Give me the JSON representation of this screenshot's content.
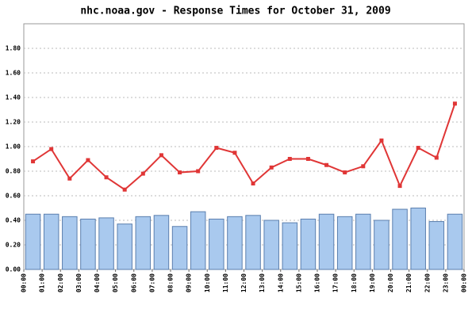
{
  "chart_data": {
    "type": "bar",
    "title": "nhc.noaa.gov - Response Times for October 31, 2009",
    "xticks": [
      "00:00",
      "01:00",
      "02:00",
      "03:00",
      "04:00",
      "05:00",
      "06:00",
      "07:00",
      "08:00",
      "09:00",
      "10:00",
      "11:00",
      "12:00",
      "13:00",
      "14:00",
      "15:00",
      "16:00",
      "17:00",
      "18:00",
      "19:00",
      "20:00",
      "21:00",
      "22:00",
      "23:00",
      "00:00"
    ],
    "series": [
      {
        "type": "bar",
        "color": "#a9c9ee",
        "values": [
          0.45,
          0.45,
          0.43,
          0.41,
          0.42,
          0.37,
          0.43,
          0.44,
          0.35,
          0.47,
          0.41,
          0.43,
          0.44,
          0.4,
          0.38,
          0.41,
          0.45,
          0.43,
          0.45,
          0.4,
          0.49,
          0.5,
          0.39,
          0.45
        ]
      },
      {
        "type": "line",
        "color": "#e03636",
        "values": [
          0.88,
          0.98,
          0.74,
          0.89,
          0.75,
          0.65,
          0.78,
          0.93,
          0.79,
          0.8,
          0.99,
          0.95,
          0.7,
          0.83,
          0.9,
          0.9,
          0.85,
          0.79,
          0.84,
          1.05,
          0.68,
          0.99,
          0.91,
          1.35
        ]
      }
    ],
    "ylim": [
      0,
      2
    ],
    "yticks": [
      {
        "value": 0,
        "label": "0.00"
      },
      {
        "value": 0.2,
        "label": "0.20"
      },
      {
        "value": 0.4,
        "label": "0.40"
      },
      {
        "value": 0.6,
        "label": "0.60"
      },
      {
        "value": 0.8,
        "label": "0.80"
      },
      {
        "value": 1,
        "label": "1.00"
      },
      {
        "value": 1.2,
        "label": "1.20"
      },
      {
        "value": 1.4,
        "label": "1.40"
      },
      {
        "value": 1.6,
        "label": "1.60"
      },
      {
        "value": 1.8,
        "label": "1.80"
      }
    ],
    "grid": true
  }
}
